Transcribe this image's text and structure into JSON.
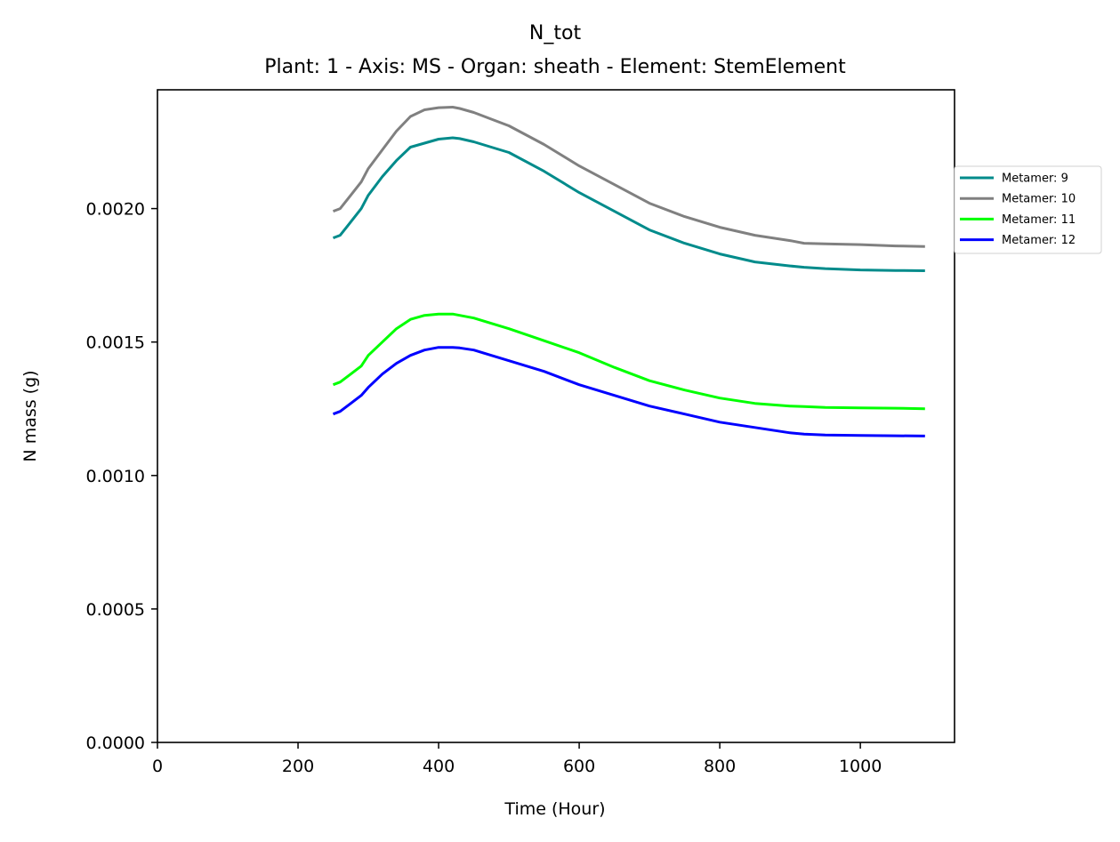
{
  "chart_data": {
    "type": "line",
    "title": "N_tot",
    "subtitle": "Plant: 1 - Axis: MS - Organ: sheath - Element: StemElement",
    "xlabel": "Time (Hour)",
    "ylabel": "N mass (g)",
    "xlim": [
      0,
      1134
    ],
    "ylim": [
      0,
      0.002445
    ],
    "xticks": [
      0,
      200,
      400,
      600,
      800,
      1000
    ],
    "xtick_labels": [
      "0",
      "200",
      "400",
      "600",
      "800",
      "1000"
    ],
    "yticks": [
      0,
      0.0005,
      0.001,
      0.0015,
      0.002
    ],
    "ytick_labels": [
      "0.0000",
      "0.0005",
      "0.0010",
      "0.0015",
      "0.0020"
    ],
    "grid": false,
    "legend_position": "right, outside plot area",
    "series": [
      {
        "name": "Metamer: 9",
        "color": "#008b8b",
        "x": [
          250,
          260,
          275,
          290,
          300,
          320,
          340,
          360,
          380,
          400,
          420,
          430,
          450,
          475,
          500,
          550,
          600,
          650,
          700,
          750,
          800,
          850,
          900,
          920,
          950,
          1000,
          1050,
          1092
        ],
        "y": [
          0.00189,
          0.0019,
          0.00195,
          0.002,
          0.00205,
          0.00212,
          0.00218,
          0.00223,
          0.002245,
          0.00226,
          0.002265,
          0.002262,
          0.00225,
          0.00223,
          0.00221,
          0.00214,
          0.00206,
          0.00199,
          0.00192,
          0.00187,
          0.00183,
          0.0018,
          0.001785,
          0.00178,
          0.001775,
          0.00177,
          0.001768,
          0.001767
        ]
      },
      {
        "name": "Metamer: 10",
        "color": "#808080",
        "x": [
          250,
          260,
          275,
          290,
          300,
          320,
          340,
          360,
          380,
          400,
          420,
          430,
          450,
          475,
          500,
          550,
          600,
          650,
          700,
          750,
          800,
          850,
          900,
          920,
          950,
          1000,
          1050,
          1092
        ],
        "y": [
          0.00199,
          0.002,
          0.00205,
          0.0021,
          0.00215,
          0.00222,
          0.00229,
          0.002345,
          0.00237,
          0.002378,
          0.00238,
          0.002375,
          0.00236,
          0.002335,
          0.00231,
          0.00224,
          0.00216,
          0.00209,
          0.00202,
          0.00197,
          0.00193,
          0.0019,
          0.00188,
          0.00187,
          0.001868,
          0.001865,
          0.00186,
          0.001858
        ]
      },
      {
        "name": "Metamer: 11",
        "color": "#00ff00",
        "x": [
          250,
          260,
          275,
          290,
          300,
          320,
          340,
          360,
          380,
          400,
          420,
          430,
          450,
          475,
          500,
          550,
          600,
          650,
          700,
          750,
          800,
          850,
          900,
          920,
          950,
          1000,
          1050,
          1092
        ],
        "y": [
          0.00134,
          0.00135,
          0.00138,
          0.00141,
          0.00145,
          0.0015,
          0.00155,
          0.001585,
          0.0016,
          0.001605,
          0.001605,
          0.0016,
          0.00159,
          0.00157,
          0.00155,
          0.001505,
          0.00146,
          0.001405,
          0.001355,
          0.00132,
          0.00129,
          0.00127,
          0.00126,
          0.001258,
          0.001255,
          0.001253,
          0.001252,
          0.00125
        ]
      },
      {
        "name": "Metamer: 12",
        "color": "#0000ff",
        "x": [
          250,
          260,
          275,
          290,
          300,
          320,
          340,
          360,
          380,
          400,
          420,
          430,
          450,
          475,
          500,
          550,
          600,
          650,
          700,
          750,
          800,
          850,
          900,
          920,
          950,
          1000,
          1050,
          1092
        ],
        "y": [
          0.00123,
          0.00124,
          0.00127,
          0.0013,
          0.00133,
          0.00138,
          0.00142,
          0.00145,
          0.00147,
          0.00148,
          0.00148,
          0.001478,
          0.00147,
          0.00145,
          0.00143,
          0.00139,
          0.00134,
          0.0013,
          0.00126,
          0.00123,
          0.0012,
          0.00118,
          0.00116,
          0.001155,
          0.001152,
          0.00115,
          0.001149,
          0.001148
        ]
      }
    ]
  }
}
